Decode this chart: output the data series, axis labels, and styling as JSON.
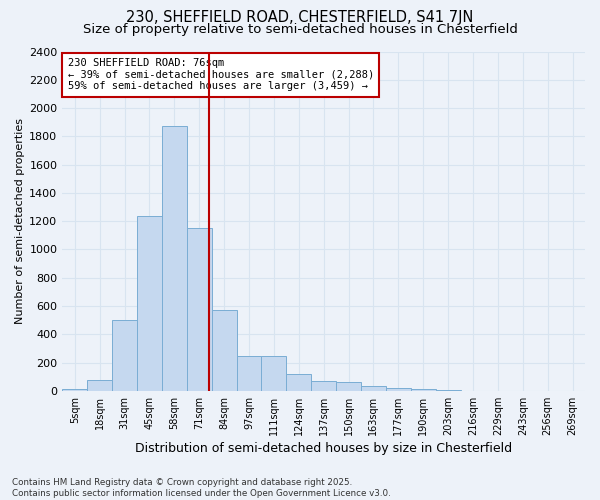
{
  "title1": "230, SHEFFIELD ROAD, CHESTERFIELD, S41 7JN",
  "title2": "Size of property relative to semi-detached houses in Chesterfield",
  "xlabel": "Distribution of semi-detached houses by size in Chesterfield",
  "ylabel": "Number of semi-detached properties",
  "categories": [
    "5sqm",
    "18sqm",
    "31sqm",
    "45sqm",
    "58sqm",
    "71sqm",
    "84sqm",
    "97sqm",
    "111sqm",
    "124sqm",
    "137sqm",
    "150sqm",
    "163sqm",
    "177sqm",
    "190sqm",
    "203sqm",
    "216sqm",
    "229sqm",
    "243sqm",
    "256sqm",
    "269sqm"
  ],
  "values": [
    10,
    80,
    500,
    1240,
    1870,
    1150,
    575,
    245,
    245,
    120,
    70,
    60,
    35,
    20,
    10,
    5,
    0,
    0,
    0,
    0,
    0
  ],
  "bar_color": "#c5d8ef",
  "bar_edge_color": "#7aadd4",
  "vline_color": "#bb0000",
  "annotation_title": "230 SHEFFIELD ROAD: 76sqm",
  "annotation_line1": "← 39% of semi-detached houses are smaller (2,288)",
  "annotation_line2": "59% of semi-detached houses are larger (3,459) →",
  "annotation_box_color": "#bb0000",
  "ylim": [
    0,
    2400
  ],
  "ytick_max": 2400,
  "ytick_step": 200,
  "footnote": "Contains HM Land Registry data © Crown copyright and database right 2025.\nContains public sector information licensed under the Open Government Licence v3.0.",
  "bg_color": "#edf2f9",
  "grid_color": "#d8e4f0",
  "title1_fontsize": 10.5,
  "title2_fontsize": 9.5,
  "ylabel_fontsize": 8,
  "xlabel_fontsize": 9
}
